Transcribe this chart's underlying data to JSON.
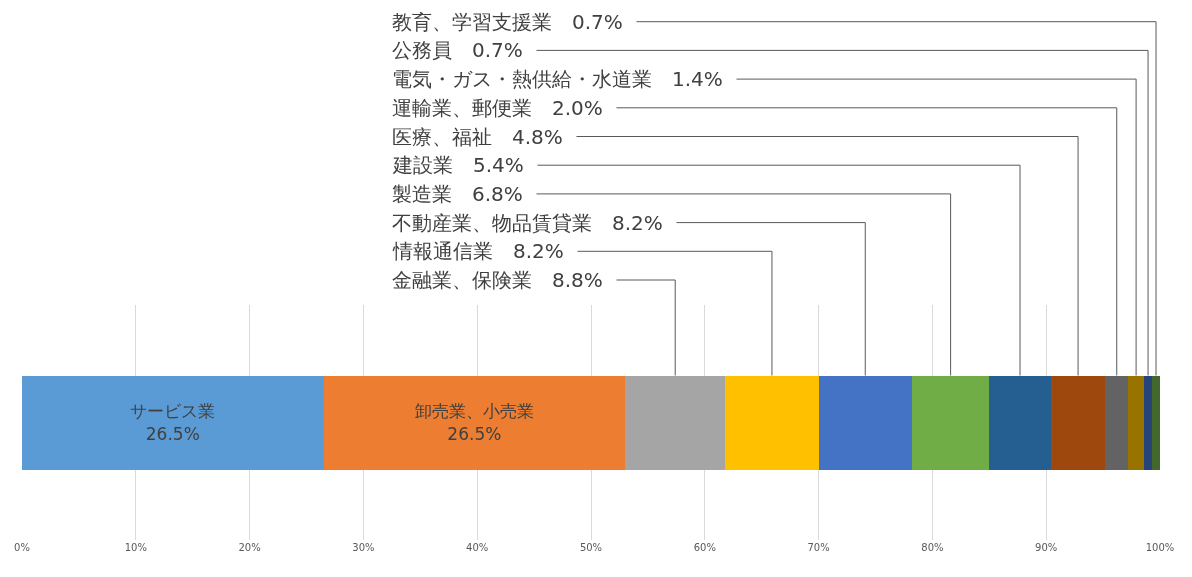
{
  "chart_data": {
    "type": "bar",
    "orientation": "horizontal",
    "stacked": true,
    "categories": [
      null
    ],
    "xlim": [
      0,
      100
    ],
    "xticks": [
      {
        "value": 0,
        "label": "0%"
      },
      {
        "value": 10,
        "label": "10%"
      },
      {
        "value": 20,
        "label": "20%"
      },
      {
        "value": 30,
        "label": "30%"
      },
      {
        "value": 40,
        "label": "40%"
      },
      {
        "value": 50,
        "label": "50%"
      },
      {
        "value": 60,
        "label": "60%"
      },
      {
        "value": 70,
        "label": "70%"
      },
      {
        "value": 80,
        "label": "80%"
      },
      {
        "value": 90,
        "label": "90%"
      },
      {
        "value": 100,
        "label": "100%"
      }
    ],
    "grid": "x",
    "tick_labels": "x",
    "series": [
      {
        "name": "サービス業",
        "color": "#5b9bd5",
        "values": [
          26.5
        ],
        "value_labels": [
          "26.5%"
        ]
      },
      {
        "name": "卸売業、小売業",
        "color": "#ed7d31",
        "values": [
          26.5
        ],
        "value_labels": [
          "26.5%"
        ]
      },
      {
        "name": "金融業、保険業",
        "color": "#a5a5a5",
        "values": [
          8.8
        ],
        "value_labels": [
          "8.8%"
        ]
      },
      {
        "name": "情報通信業",
        "color": "#ffc000",
        "values": [
          8.2
        ],
        "value_labels": [
          "8.2%"
        ]
      },
      {
        "name": "不動産業、物品賃貸業",
        "color": "#4472c4",
        "values": [
          8.2
        ],
        "value_labels": [
          "8.2%"
        ]
      },
      {
        "name": "製造業",
        "color": "#70ad47",
        "values": [
          6.8
        ],
        "value_labels": [
          "6.8%"
        ]
      },
      {
        "name": "建設業",
        "color": "#255e91",
        "values": [
          5.4
        ],
        "value_labels": [
          "5.4%"
        ]
      },
      {
        "name": "医療、福祉",
        "color": "#9e480e",
        "values": [
          4.8
        ],
        "value_labels": [
          "4.8%"
        ]
      },
      {
        "name": "運輸業、郵便業",
        "color": "#636363",
        "values": [
          2.0
        ],
        "value_labels": [
          "2.0%"
        ]
      },
      {
        "name": "電気・ガス・熱供給・水道業",
        "color": "#997300",
        "values": [
          1.4
        ],
        "value_labels": [
          "1.4%"
        ]
      },
      {
        "name": "公務員",
        "color": "#264478",
        "values": [
          0.7
        ],
        "value_labels": [
          "0.7%"
        ]
      },
      {
        "name": "教育、学習支援業",
        "color": "#43682b",
        "values": [
          0.7
        ],
        "value_labels": [
          "0.7%"
        ]
      }
    ]
  }
}
